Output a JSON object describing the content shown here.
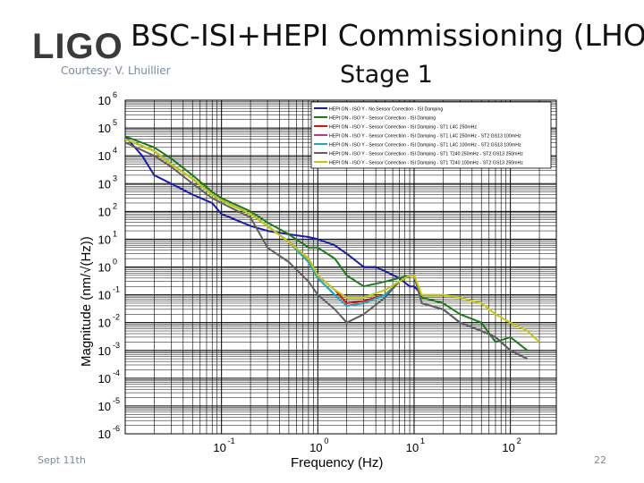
{
  "header": {
    "logo_text": "LIGO",
    "title": "BSC-ISI+HEPI Commissioning (LHO)",
    "subtitle": "Stage 1",
    "courtesy": "Courtesy: V. Lhuillier"
  },
  "footer": {
    "date": "Sept 11th",
    "page_number": "22"
  },
  "chart_data": {
    "type": "line",
    "xlabel": "Frequency (Hz)",
    "ylabel": "Magnitude (nm/√(Hz))",
    "x_scale": "log",
    "y_scale": "log",
    "xlim": [
      0.01,
      300
    ],
    "ylim": [
      1e-06,
      1000000.0
    ],
    "x_ticks": [
      {
        "value": 0.1,
        "base": "10",
        "exp": "-1"
      },
      {
        "value": 1,
        "base": "10",
        "exp": "0"
      },
      {
        "value": 10,
        "base": "10",
        "exp": "1"
      },
      {
        "value": 100,
        "base": "10",
        "exp": "2"
      }
    ],
    "y_ticks": [
      {
        "value": 1e-06,
        "base": "10",
        "exp": "-6"
      },
      {
        "value": 1e-05,
        "base": "10",
        "exp": "-5"
      },
      {
        "value": 0.0001,
        "base": "10",
        "exp": "-4"
      },
      {
        "value": 0.001,
        "base": "10",
        "exp": "-3"
      },
      {
        "value": 0.01,
        "base": "10",
        "exp": "-2"
      },
      {
        "value": 0.1,
        "base": "10",
        "exp": "-1"
      },
      {
        "value": 1,
        "base": "10",
        "exp": "0"
      },
      {
        "value": 10,
        "base": "10",
        "exp": "1"
      },
      {
        "value": 100,
        "base": "10",
        "exp": "2"
      },
      {
        "value": 1000,
        "base": "10",
        "exp": "3"
      },
      {
        "value": 10000,
        "base": "10",
        "exp": "4"
      },
      {
        "value": 100000,
        "base": "10",
        "exp": "5"
      },
      {
        "value": 1000000,
        "base": "10",
        "exp": "6"
      }
    ],
    "grid": true,
    "legend_position": "top-right",
    "series": [
      {
        "name": "HEPI ON - ISO Y - No Sensor Correction - ISI Damping",
        "color": "#1a1ab0",
        "points": [
          [
            0.01,
            50000.0
          ],
          [
            0.015,
            10000.0
          ],
          [
            0.02,
            2000.0
          ],
          [
            0.03,
            1000.0
          ],
          [
            0.05,
            400
          ],
          [
            0.08,
            200
          ],
          [
            0.1,
            80
          ],
          [
            0.2,
            30
          ],
          [
            0.3,
            20
          ],
          [
            0.5,
            15
          ],
          [
            0.8,
            12
          ],
          [
            1,
            10
          ],
          [
            1.5,
            6
          ],
          [
            2,
            3
          ],
          [
            3,
            1
          ],
          [
            4,
            1
          ],
          [
            5,
            0.7
          ],
          [
            7,
            0.4
          ],
          [
            9,
            0.2
          ],
          [
            10,
            0.2
          ],
          [
            12,
            0.1
          ]
        ]
      },
      {
        "name": "HEPI ON - ISO Y - Sensor Correction - ISI Damping",
        "color": "#1a7a1a",
        "points": [
          [
            0.01,
            50000.0
          ],
          [
            0.02,
            20000.0
          ],
          [
            0.03,
            8000.0
          ],
          [
            0.05,
            2000.0
          ],
          [
            0.08,
            500
          ],
          [
            0.1,
            300
          ],
          [
            0.2,
            100
          ],
          [
            0.3,
            40
          ],
          [
            0.5,
            15
          ],
          [
            0.8,
            5
          ],
          [
            1,
            5
          ],
          [
            1.5,
            2
          ],
          [
            2,
            0.5
          ],
          [
            3,
            0.2
          ],
          [
            5,
            0.3
          ],
          [
            7,
            0.4
          ],
          [
            9,
            0.5
          ],
          [
            10,
            0.5
          ],
          [
            12,
            0.08
          ],
          [
            20,
            0.05
          ],
          [
            30,
            0.02
          ],
          [
            50,
            0.01
          ],
          [
            70,
            0.002
          ],
          [
            100,
            0.003
          ],
          [
            150,
            0.001
          ]
        ]
      },
      {
        "name": "HEPI ON - ISO Y - Sensor Correction - ISI Damping - ST1 L4C 250mHz",
        "color": "#e01010",
        "points": [
          [
            0.01,
            40000.0
          ],
          [
            0.02,
            15000.0
          ],
          [
            0.03,
            5000.0
          ],
          [
            0.05,
            1500.0
          ],
          [
            0.08,
            400
          ],
          [
            0.1,
            250
          ],
          [
            0.2,
            80
          ],
          [
            0.3,
            30
          ],
          [
            0.5,
            8
          ],
          [
            0.8,
            2
          ],
          [
            1,
            0.5
          ],
          [
            1.5,
            0.15
          ],
          [
            2,
            0.05
          ],
          [
            3,
            0.06
          ],
          [
            5,
            0.1
          ],
          [
            7,
            0.3
          ],
          [
            9,
            0.5
          ],
          [
            10,
            0.5
          ],
          [
            12,
            0.05
          ],
          [
            20,
            0.03
          ],
          [
            30,
            0.01
          ],
          [
            50,
            0.005
          ],
          [
            70,
            0.003
          ],
          [
            100,
            0.001
          ],
          [
            150,
            0.0005
          ]
        ]
      },
      {
        "name": "HEPI ON - ISO Y - Sensor Correction - ISI Damping - ST1 L4C 250mHz - ST2 GS13 100mHz",
        "color": "#c0309a",
        "points": [
          [
            0.01,
            40000.0
          ],
          [
            0.02,
            15000.0
          ],
          [
            0.03,
            5000.0
          ],
          [
            0.05,
            1500.0
          ],
          [
            0.08,
            400
          ],
          [
            0.1,
            250
          ],
          [
            0.2,
            80
          ],
          [
            0.3,
            30
          ],
          [
            0.5,
            8
          ],
          [
            0.8,
            1.5
          ],
          [
            1,
            0.4
          ],
          [
            1.5,
            0.1
          ],
          [
            2,
            0.04
          ],
          [
            3,
            0.05
          ],
          [
            5,
            0.1
          ],
          [
            7,
            0.3
          ],
          [
            9,
            0.5
          ],
          [
            10,
            0.5
          ],
          [
            12,
            0.05
          ],
          [
            20,
            0.03
          ],
          [
            30,
            0.01
          ],
          [
            50,
            0.005
          ],
          [
            70,
            0.003
          ],
          [
            100,
            0.001
          ],
          [
            150,
            0.0005
          ]
        ]
      },
      {
        "name": "HEPI ON - ISO Y - Sensor Correction - ISI Damping - ST1 L4C 100mHz - ST2 GS13 100mHz",
        "color": "#10b0c0",
        "points": [
          [
            0.01,
            40000.0
          ],
          [
            0.02,
            15000.0
          ],
          [
            0.03,
            5000.0
          ],
          [
            0.05,
            1500.0
          ],
          [
            0.08,
            400
          ],
          [
            0.1,
            250
          ],
          [
            0.2,
            80
          ],
          [
            0.3,
            30
          ],
          [
            0.5,
            8
          ],
          [
            0.8,
            1.5
          ],
          [
            1,
            0.4
          ],
          [
            1.5,
            0.1
          ],
          [
            2,
            0.04
          ],
          [
            3,
            0.05
          ],
          [
            5,
            0.1
          ],
          [
            7,
            0.3
          ],
          [
            9,
            0.5
          ],
          [
            10,
            0.5
          ],
          [
            12,
            0.05
          ],
          [
            20,
            0.03
          ],
          [
            30,
            0.01
          ],
          [
            50,
            0.005
          ],
          [
            70,
            0.003
          ],
          [
            100,
            0.001
          ],
          [
            150,
            0.0005
          ]
        ]
      },
      {
        "name": "HEPI ON - ISO Y - Sensor Correction - ISI Damping - ST1 T240 250mHz - ST2 GS13 250mHz",
        "color": "#606060",
        "points": [
          [
            0.01,
            30000.0
          ],
          [
            0.02,
            10000.0
          ],
          [
            0.03,
            4000.0
          ],
          [
            0.05,
            1000.0
          ],
          [
            0.08,
            300
          ],
          [
            0.1,
            200
          ],
          [
            0.2,
            60
          ],
          [
            0.3,
            5
          ],
          [
            0.5,
            1.5
          ],
          [
            0.8,
            0.3
          ],
          [
            1,
            0.1
          ],
          [
            1.5,
            0.03
          ],
          [
            2,
            0.01
          ],
          [
            3,
            0.02
          ],
          [
            5,
            0.08
          ],
          [
            7,
            0.3
          ],
          [
            9,
            0.5
          ],
          [
            10,
            0.5
          ],
          [
            12,
            0.05
          ],
          [
            20,
            0.03
          ],
          [
            30,
            0.01
          ],
          [
            50,
            0.005
          ],
          [
            70,
            0.003
          ],
          [
            100,
            0.001
          ],
          [
            150,
            0.0005
          ]
        ]
      },
      {
        "name": "HEPI ON - ISO Y - Sensor Correction - ISI Damping - ST1 T240 100mHz - ST2 GS13 250mHz",
        "color": "#c8c800",
        "points": [
          [
            0.01,
            40000.0
          ],
          [
            0.02,
            15000.0
          ],
          [
            0.03,
            5000.0
          ],
          [
            0.05,
            1500.0
          ],
          [
            0.08,
            400
          ],
          [
            0.1,
            250
          ],
          [
            0.2,
            80
          ],
          [
            0.3,
            30
          ],
          [
            0.5,
            8
          ],
          [
            0.8,
            2
          ],
          [
            1,
            0.5
          ],
          [
            1.5,
            0.15
          ],
          [
            2,
            0.08
          ],
          [
            3,
            0.08
          ],
          [
            5,
            0.15
          ],
          [
            7,
            0.3
          ],
          [
            9,
            0.5
          ],
          [
            10,
            0.5
          ],
          [
            12,
            0.1
          ],
          [
            20,
            0.1
          ],
          [
            30,
            0.08
          ],
          [
            50,
            0.05
          ],
          [
            70,
            0.02
          ],
          [
            100,
            0.01
          ],
          [
            150,
            0.005
          ],
          [
            200,
            0.002
          ]
        ]
      }
    ]
  }
}
